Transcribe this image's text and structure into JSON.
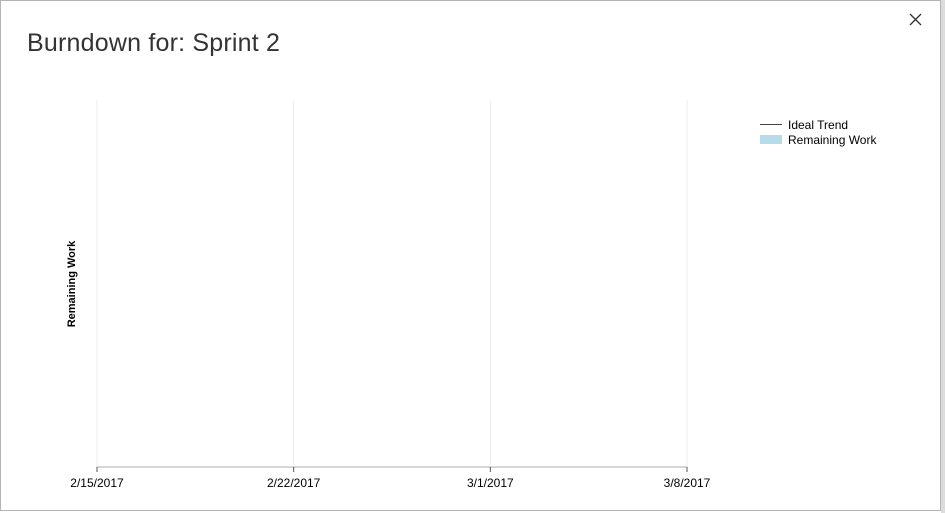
{
  "dialog": {
    "title": "Burndown for: Sprint 2",
    "close_icon": "close-icon"
  },
  "colors": {
    "ideal_trend": "#444444",
    "remaining_work": "#b6dcec",
    "gridline": "#ececec",
    "axis": "#c8c8c8"
  },
  "chart_data": {
    "type": "area",
    "title": "",
    "xlabel": "",
    "ylabel": "Remaining Work",
    "x_ticks": [
      "2/15/2017",
      "2/22/2017",
      "3/1/2017",
      "3/8/2017"
    ],
    "x_range": [
      "2/15/2017",
      "3/8/2017"
    ],
    "grid": "vertical",
    "legend_position": "top-right",
    "series": [
      {
        "name": "Ideal Trend",
        "kind": "line",
        "values": []
      },
      {
        "name": "Remaining Work",
        "kind": "area",
        "values": []
      }
    ],
    "legend": [
      {
        "label": "Ideal Trend",
        "swatch": "line"
      },
      {
        "label": "Remaining Work",
        "swatch": "area"
      }
    ]
  }
}
